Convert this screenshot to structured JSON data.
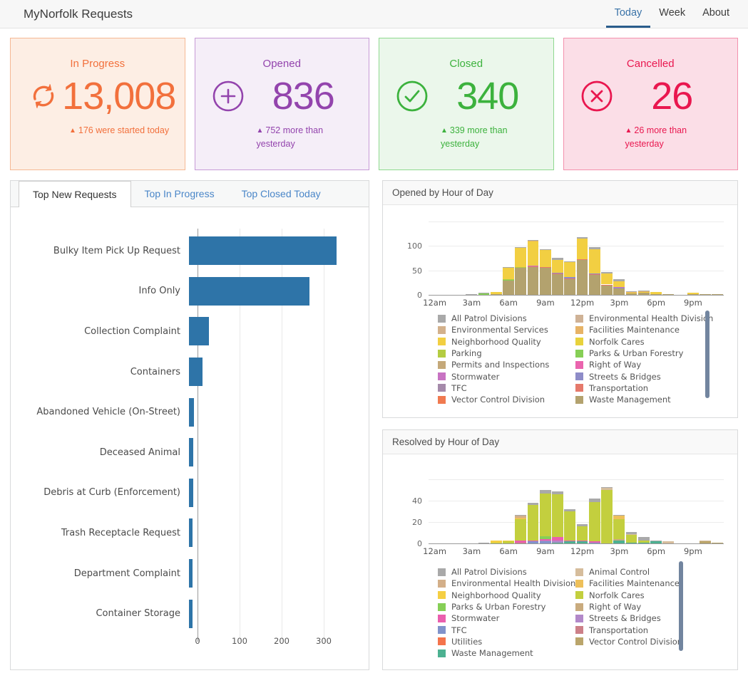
{
  "header": {
    "title": "MyNorfolk Requests",
    "nav": [
      {
        "label": "Today",
        "active": true
      },
      {
        "label": "Week",
        "active": false
      },
      {
        "label": "About",
        "active": false
      }
    ]
  },
  "stats": [
    {
      "label": "In Progress",
      "value": "13,008",
      "delta": "176 were started today",
      "icon": "sync-icon",
      "color": "#f2703c",
      "bg": "#fdeee4",
      "border": "#f5b894",
      "wrap": false
    },
    {
      "label": "Opened",
      "value": "836",
      "delta": "752 more than yesterday",
      "icon": "plus-circle-icon",
      "color": "#9344ad",
      "bg": "#f5eef8",
      "border": "#c79ad6",
      "wrap": true
    },
    {
      "label": "Closed",
      "value": "340",
      "delta": "339 more than yesterday",
      "icon": "check-circle-icon",
      "color": "#3cb23d",
      "bg": "#ebf7eb",
      "border": "#8fd98f",
      "wrap": true
    },
    {
      "label": "Cancelled",
      "value": "26",
      "delta": "26 more than yesterday",
      "icon": "x-circle-icon",
      "color": "#e9174f",
      "bg": "#fbdee7",
      "border": "#f391ad",
      "wrap": true
    }
  ],
  "tabs": [
    {
      "label": "Top New Requests",
      "active": true
    },
    {
      "label": "Top In Progress",
      "active": false
    },
    {
      "label": "Top Closed Today",
      "active": false
    }
  ],
  "chart_data": [
    {
      "type": "bar",
      "orientation": "horizontal",
      "title": "Top New Requests",
      "categories": [
        "Bulky Item Pick Up Request",
        "Info Only",
        "Collection Complaint",
        "Containers",
        "Abandoned Vehicle (On-Street)",
        "Deceased Animal",
        "Debris at Curb (Enforcement)",
        "Trash Receptacle Request",
        "Department Complaint",
        "Container Storage"
      ],
      "values": [
        350,
        287,
        48,
        33,
        12,
        10,
        10,
        9,
        9,
        8
      ],
      "bar_color": "#2e74a8",
      "xticks": [
        0,
        100,
        200,
        300
      ],
      "xlim": [
        0,
        400
      ],
      "grid": true
    },
    {
      "type": "stacked-bar",
      "title": "Opened by Hour of Day",
      "x": [
        "12am",
        "1am",
        "2am",
        "3am",
        "4am",
        "5am",
        "6am",
        "7am",
        "8am",
        "9am",
        "10am",
        "11am",
        "12pm",
        "1pm",
        "2pm",
        "3pm",
        "4pm",
        "5pm",
        "6pm",
        "7pm",
        "8pm",
        "9pm",
        "10pm",
        "11pm"
      ],
      "xticks": [
        "12am",
        "3am",
        "6am",
        "9am",
        "12pm",
        "3pm",
        "6pm",
        "9pm"
      ],
      "yticks": [
        0,
        50,
        100
      ],
      "ylim": [
        0,
        150
      ],
      "legend_position": "bottom",
      "series": [
        {
          "name": "Waste Management",
          "color": "#b3a26e",
          "values": [
            0,
            0,
            0,
            1,
            0,
            1,
            30,
            55,
            56,
            56,
            42,
            33,
            72,
            40,
            20,
            13,
            4,
            4,
            1,
            1,
            0,
            1,
            1,
            2
          ]
        },
        {
          "name": "Vector Control Division",
          "color": "#f07a50",
          "values": [
            0,
            0,
            0,
            0,
            0,
            0,
            0,
            0,
            0,
            0,
            0,
            0,
            0,
            0,
            0,
            0,
            0,
            0,
            0,
            0,
            0,
            0,
            0,
            0
          ]
        },
        {
          "name": "Transportation",
          "color": "#e5796b",
          "values": [
            0,
            0,
            0,
            0,
            0,
            0,
            0,
            1,
            2,
            1,
            1,
            1,
            1,
            2,
            1,
            0,
            0,
            0,
            0,
            0,
            0,
            0,
            0,
            0
          ]
        },
        {
          "name": "TFC",
          "color": "#a58aaa",
          "values": [
            0,
            0,
            0,
            0,
            0,
            0,
            0,
            0,
            0,
            0,
            0,
            0,
            0,
            0,
            0,
            0,
            0,
            0,
            0,
            0,
            0,
            0,
            0,
            0
          ]
        },
        {
          "name": "Streets & Bridges",
          "color": "#8e8cc8",
          "values": [
            0,
            0,
            0,
            0,
            0,
            0,
            0,
            0,
            0,
            0,
            2,
            2,
            0,
            1,
            0,
            2,
            0,
            0,
            0,
            0,
            0,
            0,
            0,
            0
          ]
        },
        {
          "name": "Stormwater",
          "color": "#c873c3",
          "values": [
            0,
            0,
            0,
            0,
            0,
            0,
            0,
            0,
            1,
            0,
            0,
            0,
            0,
            0,
            0,
            1,
            0,
            0,
            0,
            0,
            0,
            0,
            0,
            0
          ]
        },
        {
          "name": "Right of Way",
          "color": "#ea64ae",
          "values": [
            0,
            0,
            0,
            0,
            0,
            0,
            0,
            0,
            0,
            0,
            0,
            0,
            0,
            0,
            0,
            0,
            0,
            0,
            0,
            0,
            0,
            0,
            0,
            0
          ]
        },
        {
          "name": "Permits and Inspections",
          "color": "#c5a97a",
          "values": [
            0,
            0,
            0,
            0,
            0,
            0,
            0,
            0,
            0,
            0,
            0,
            0,
            0,
            0,
            0,
            0,
            0,
            0,
            0,
            0,
            0,
            0,
            0,
            0
          ]
        },
        {
          "name": "Parks & Urban Forestry",
          "color": "#86cf56",
          "values": [
            0,
            0,
            0,
            0,
            3,
            0,
            1,
            0,
            0,
            0,
            0,
            0,
            0,
            0,
            0,
            0,
            0,
            0,
            0,
            0,
            0,
            0,
            0,
            0
          ]
        },
        {
          "name": "Parking",
          "color": "#b4cc42",
          "values": [
            0,
            0,
            0,
            0,
            0,
            0,
            1,
            1,
            0,
            0,
            0,
            0,
            0,
            0,
            0,
            0,
            0,
            0,
            0,
            0,
            0,
            0,
            0,
            0
          ]
        },
        {
          "name": "Norfolk Cares",
          "color": "#e8d23c",
          "values": [
            0,
            0,
            0,
            0,
            0,
            0,
            0,
            0,
            0,
            0,
            0,
            0,
            0,
            0,
            0,
            0,
            0,
            0,
            0,
            0,
            0,
            0,
            0,
            0
          ]
        },
        {
          "name": "Neighborhood Quality",
          "color": "#f2cf42",
          "values": [
            0,
            0,
            0,
            0,
            1,
            5,
            23,
            38,
            49,
            34,
            26,
            30,
            41,
            50,
            23,
            12,
            1,
            2,
            5,
            0,
            0,
            3,
            0,
            0
          ]
        },
        {
          "name": "Facilities Maintenance",
          "color": "#e7b366",
          "values": [
            0,
            0,
            0,
            0,
            0,
            0,
            0,
            0,
            2,
            0,
            0,
            0,
            0,
            0,
            0,
            0,
            1,
            1,
            0,
            0,
            0,
            0,
            0,
            0
          ]
        },
        {
          "name": "Environmental Services",
          "color": "#d3b18c",
          "values": [
            0,
            0,
            0,
            0,
            0,
            0,
            0,
            0,
            0,
            0,
            0,
            0,
            0,
            0,
            0,
            0,
            0,
            0,
            0,
            0,
            0,
            0,
            0,
            0
          ]
        },
        {
          "name": "Environmental Health Division",
          "color": "#cfb296",
          "values": [
            0,
            0,
            0,
            0,
            0,
            0,
            0,
            0,
            0,
            0,
            0,
            0,
            0,
            0,
            0,
            0,
            0,
            0,
            0,
            0,
            0,
            0,
            0,
            0
          ]
        },
        {
          "name": "All Patrol Divisions",
          "color": "#a9a9a9",
          "values": [
            0,
            0,
            0,
            1,
            1,
            0,
            1,
            2,
            2,
            2,
            4,
            2,
            4,
            4,
            2,
            4,
            1,
            2,
            0,
            0,
            0,
            0,
            0,
            0
          ]
        }
      ],
      "legend_columns": [
        [
          "All Patrol Divisions",
          "Environmental Services",
          "Neighborhood Quality",
          "Parking",
          "Permits and Inspections",
          "Stormwater",
          "TFC",
          "Vector Control Division"
        ],
        [
          "Environmental Health Division",
          "Facilities Maintenance",
          "Norfolk Cares",
          "Parks & Urban Forestry",
          "Right of Way",
          "Streets & Bridges",
          "Transportation",
          "Waste Management"
        ]
      ]
    },
    {
      "type": "stacked-bar",
      "title": "Resolved by Hour of Day",
      "x": [
        "12am",
        "1am",
        "2am",
        "3am",
        "4am",
        "5am",
        "6am",
        "7am",
        "8am",
        "9am",
        "10am",
        "11am",
        "12pm",
        "1pm",
        "2pm",
        "3pm",
        "4pm",
        "5pm",
        "6pm",
        "7pm",
        "8pm",
        "9pm",
        "10pm",
        "11pm"
      ],
      "xticks": [
        "12am",
        "3am",
        "6am",
        "9am",
        "12pm",
        "3pm",
        "6pm",
        "9pm"
      ],
      "yticks": [
        0,
        20,
        40
      ],
      "ylim": [
        0,
        60
      ],
      "legend_position": "bottom",
      "series": [
        {
          "name": "Waste Management",
          "color": "#4cb191",
          "values": [
            0,
            0,
            0,
            0,
            0,
            0,
            0,
            0,
            0,
            0,
            1,
            2,
            2,
            0,
            0,
            3,
            1,
            1,
            2,
            0,
            0,
            0,
            0,
            0
          ]
        },
        {
          "name": "Vector Control Division",
          "color": "#baa56b",
          "values": [
            0,
            0,
            0,
            0,
            0,
            0,
            0,
            0,
            0,
            0,
            0,
            0,
            0,
            0,
            0,
            0,
            0,
            0,
            0,
            0,
            0,
            0,
            2,
            1
          ]
        },
        {
          "name": "Utilities",
          "color": "#f4744c",
          "values": [
            0,
            0,
            0,
            0,
            0,
            0,
            0,
            0,
            0,
            0,
            0,
            0,
            0,
            0,
            0,
            0,
            0,
            0,
            0,
            0,
            0,
            0,
            0,
            0
          ]
        },
        {
          "name": "Transportation",
          "color": "#cc8088",
          "values": [
            0,
            0,
            0,
            0,
            0,
            0,
            0,
            1,
            0,
            0,
            0,
            0,
            0,
            0,
            0,
            0,
            0,
            0,
            0,
            0,
            0,
            0,
            0,
            0
          ]
        },
        {
          "name": "TFC",
          "color": "#8193cb",
          "values": [
            0,
            0,
            0,
            0,
            0,
            0,
            0,
            0,
            2,
            2,
            0,
            0,
            0,
            1,
            0,
            0,
            0,
            0,
            0,
            0,
            0,
            0,
            0,
            0
          ]
        },
        {
          "name": "Streets & Bridges",
          "color": "#b288c9",
          "values": [
            0,
            0,
            0,
            0,
            0,
            0,
            0,
            0,
            0,
            1,
            2,
            0,
            0,
            0,
            0,
            0,
            0,
            0,
            0,
            0,
            0,
            0,
            0,
            0
          ]
        },
        {
          "name": "Stormwater",
          "color": "#ea5fae",
          "values": [
            0,
            0,
            0,
            0,
            0,
            0,
            0,
            2,
            1,
            1,
            3,
            1,
            1,
            1,
            0,
            0,
            0,
            0,
            0,
            0,
            0,
            0,
            0,
            0
          ]
        },
        {
          "name": "Right of Way",
          "color": "#c9ab7e",
          "values": [
            0,
            0,
            0,
            0,
            0,
            0,
            0,
            0,
            0,
            0,
            0,
            0,
            0,
            0,
            0,
            1,
            0,
            0,
            0,
            0,
            0,
            0,
            0,
            0
          ]
        },
        {
          "name": "Parks & Urban Forestry",
          "color": "#86cf56",
          "values": [
            0,
            0,
            0,
            0,
            0,
            0,
            0,
            0,
            0,
            3,
            0,
            0,
            0,
            0,
            0,
            0,
            0,
            0,
            0,
            0,
            0,
            0,
            0,
            0
          ]
        },
        {
          "name": "Norfolk Cares",
          "color": "#c3cf3e",
          "values": [
            0,
            0,
            0,
            0,
            0,
            1,
            2,
            20,
            33,
            40,
            40,
            27,
            13,
            37,
            50,
            19,
            7,
            2,
            0,
            0,
            0,
            0,
            0,
            0
          ]
        },
        {
          "name": "Neighborhood Quality",
          "color": "#f5cf43",
          "values": [
            0,
            0,
            0,
            0,
            0,
            2,
            1,
            0,
            0,
            0,
            0,
            0,
            0,
            0,
            0,
            0,
            0,
            0,
            0,
            0,
            0,
            0,
            0,
            0
          ]
        },
        {
          "name": "Facilities Maintenance",
          "color": "#eec05a",
          "values": [
            0,
            0,
            0,
            0,
            0,
            0,
            0,
            1,
            0,
            0,
            0,
            0,
            0,
            0,
            0,
            3,
            0,
            0,
            0,
            0,
            0,
            0,
            0,
            0
          ]
        },
        {
          "name": "Environmental Health Division",
          "color": "#d3af89",
          "values": [
            0,
            0,
            0,
            0,
            0,
            0,
            0,
            2,
            0,
            0,
            0,
            0,
            0,
            0,
            0,
            0,
            0,
            0,
            0,
            0,
            0,
            0,
            0,
            0
          ]
        },
        {
          "name": "Animal Control",
          "color": "#d6bd9c",
          "values": [
            0,
            0,
            0,
            0,
            0,
            0,
            0,
            0,
            0,
            0,
            0,
            0,
            0,
            0,
            2,
            0,
            1,
            0,
            0,
            2,
            0,
            0,
            1,
            0
          ]
        },
        {
          "name": "All Patrol Divisions",
          "color": "#a9a9a9",
          "values": [
            0,
            0,
            0,
            0,
            1,
            0,
            0,
            1,
            2,
            3,
            3,
            2,
            2,
            3,
            1,
            1,
            2,
            3,
            1,
            0,
            0,
            0,
            0,
            0
          ]
        }
      ],
      "legend_columns": [
        [
          "All Patrol Divisions",
          "Environmental Health Division",
          "Neighborhood Quality",
          "Parks & Urban Forestry",
          "Stormwater",
          "TFC",
          "Utilities",
          "Waste Management"
        ],
        [
          "Animal Control",
          "Facilities Maintenance",
          "Norfolk Cares",
          "Right of Way",
          "Streets & Bridges",
          "Transportation",
          "Vector Control Division"
        ]
      ]
    }
  ]
}
